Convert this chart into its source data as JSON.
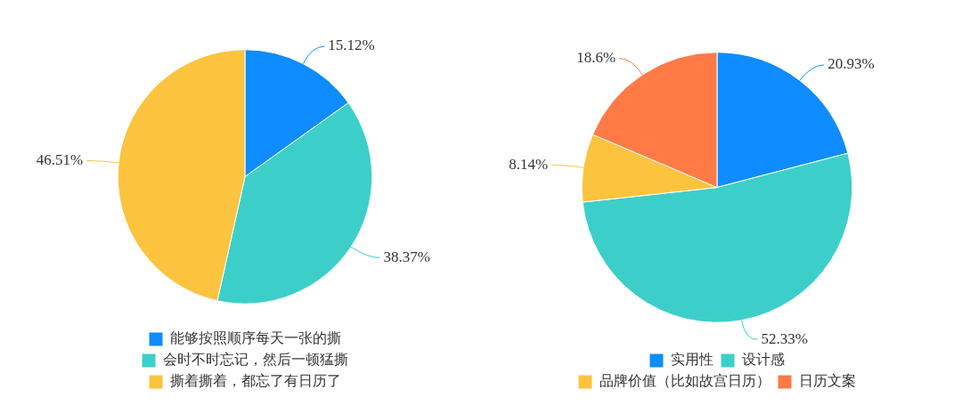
{
  "chart_data": [
    {
      "type": "pie",
      "categories": [
        "能够按照顺序每天一张的撕",
        "会时不时忘记，然后一顿猛撕",
        "撕着撕着，都忘了有日历了"
      ],
      "values": [
        15.12,
        38.37,
        46.51
      ],
      "value_labels": [
        "15.12%",
        "38.37%",
        "46.51%"
      ],
      "colors": [
        "#0f8cff",
        "#3ccfc9",
        "#fcc33f"
      ],
      "legend": "bottom"
    },
    {
      "type": "pie",
      "categories": [
        "实用性",
        "设计感",
        "品牌价值（比如故宫日历）",
        "日历文案"
      ],
      "values": [
        20.93,
        52.33,
        8.14,
        18.6
      ],
      "value_labels": [
        "20.93%",
        "52.33%",
        "8.14%",
        "18.6%"
      ],
      "colors": [
        "#0f8cff",
        "#3ccfc9",
        "#fcc33f",
        "#ff7a45"
      ],
      "legend": "bottom"
    }
  ]
}
